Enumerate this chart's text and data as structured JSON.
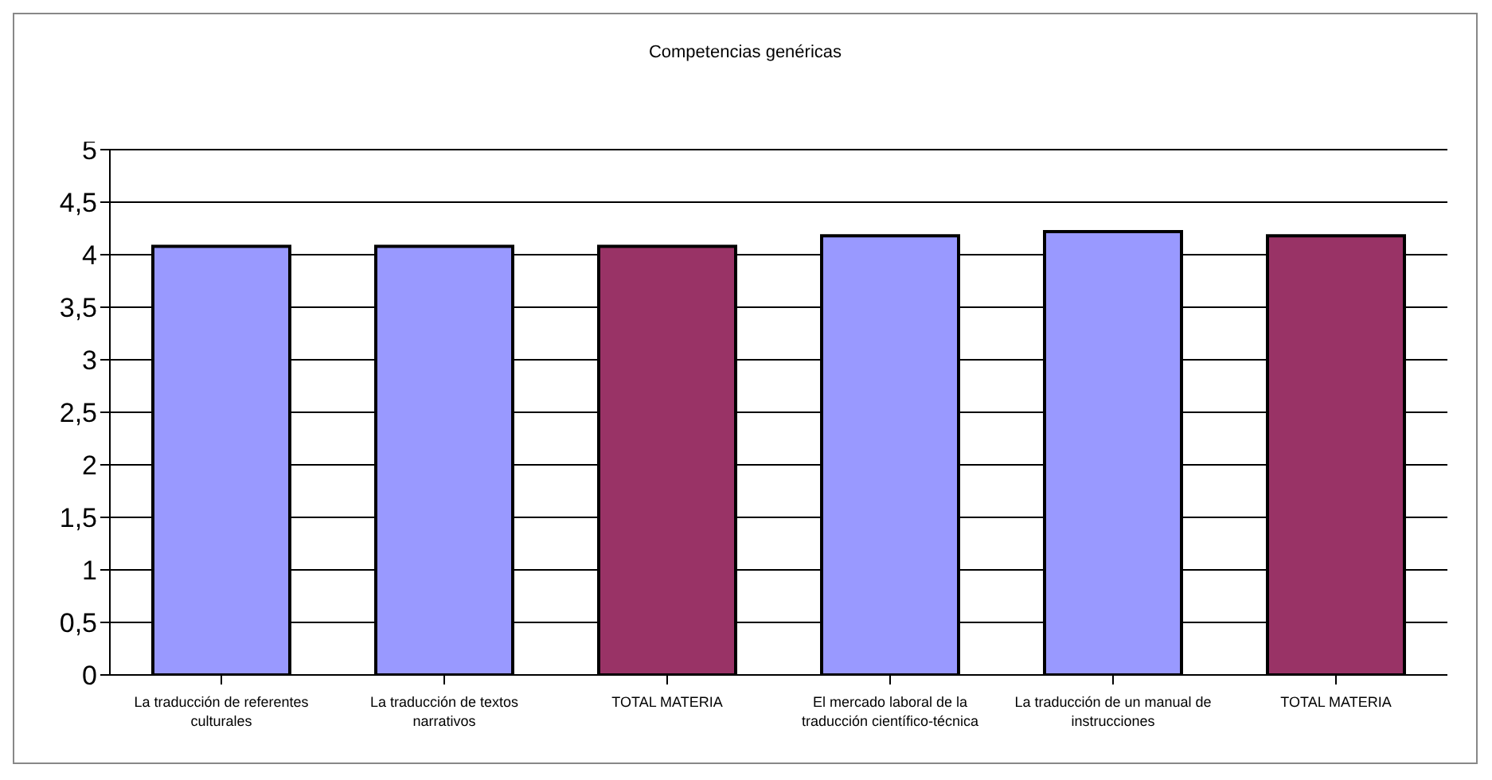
{
  "chart_data": {
    "type": "bar",
    "title": "Competencias genéricas",
    "categories": [
      "La traducción de referentes culturales",
      "La traducción de textos narrativos",
      "TOTAL MATERIA",
      "El mercado laboral de la traducción científico-técnica",
      "La traducción de un manual de instrucciones",
      "TOTAL MATERIA"
    ],
    "values": [
      4.08,
      4.08,
      4.08,
      4.18,
      4.22,
      4.18
    ],
    "colors": [
      "#9999ff",
      "#9999ff",
      "#993366",
      "#9999ff",
      "#9999ff",
      "#993366"
    ],
    "ylim": [
      0,
      5
    ],
    "yticks": [
      0,
      {
        "value": 0.5,
        "label": "0,5"
      },
      1,
      {
        "value": 1.5,
        "label": "1,5"
      },
      2,
      {
        "value": 2.5,
        "label": "2,5"
      },
      3,
      {
        "value": 3.5,
        "label": "3,5"
      },
      4,
      {
        "value": 4.5,
        "label": "4,5"
      },
      5
    ],
    "grid": "y",
    "legend": false
  }
}
